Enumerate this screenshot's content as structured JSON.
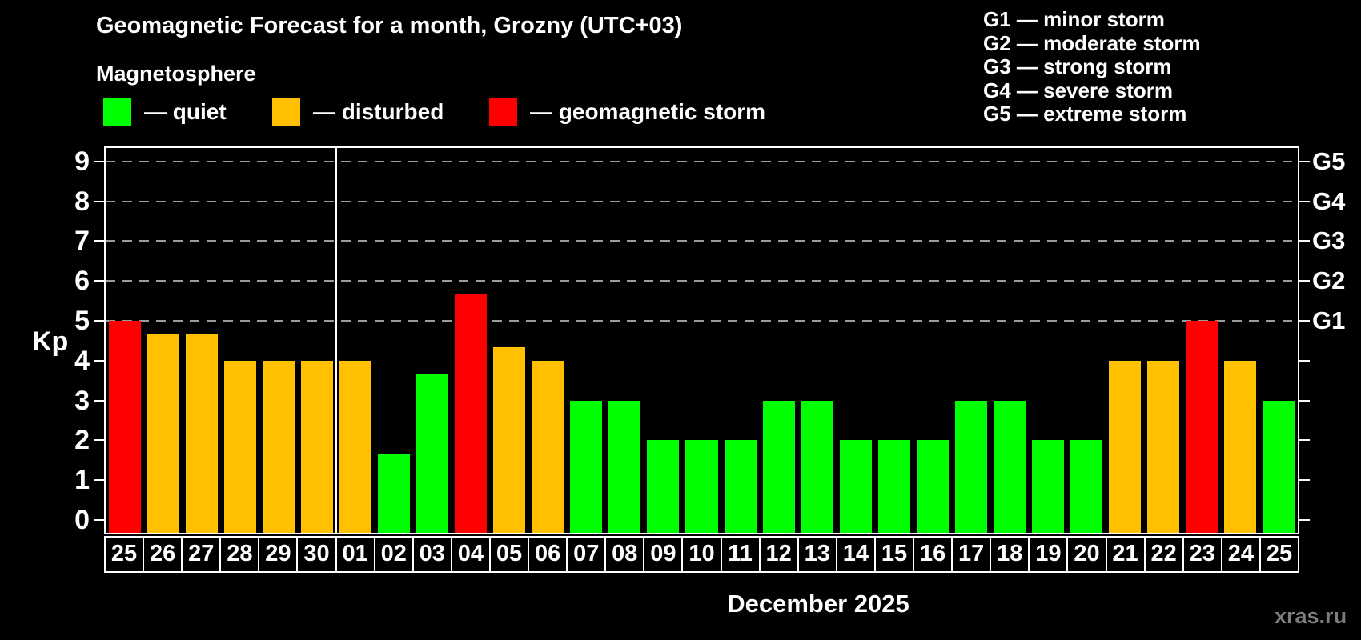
{
  "header": {
    "title": "Geomagnetic Forecast for a month, Grozny (UTC+03)",
    "subtitle": "Magnetosphere"
  },
  "legend": {
    "items": [
      {
        "name": "quiet",
        "label": "— quiet",
        "color": "#00ff00"
      },
      {
        "name": "disturbed",
        "label": "— disturbed",
        "color": "#ffc000"
      },
      {
        "name": "storm",
        "label": "— geomagnetic storm",
        "color": "#ff0000"
      }
    ]
  },
  "g_legend": {
    "lines": [
      "G1 — minor storm",
      "G2 — moderate storm",
      "G3 — strong storm",
      "G4 — severe storm",
      "G5 — extreme storm"
    ]
  },
  "chart_data": {
    "type": "bar",
    "title": "Geomagnetic Forecast for a month, Grozny (UTC+03)",
    "subtitle": "Magnetosphere",
    "xlabel": "December 2025",
    "ylabel": "Kp",
    "ylim": [
      0,
      9
    ],
    "yticks": [
      0,
      1,
      2,
      3,
      4,
      5,
      6,
      7,
      8,
      9
    ],
    "gridlines_kp": [
      5,
      6,
      7,
      8,
      9
    ],
    "right_axis": {
      "labels": [
        "G1",
        "G2",
        "G3",
        "G4",
        "G5"
      ],
      "kp_positions": [
        5,
        6,
        7,
        8,
        9
      ]
    },
    "month_separator_after_index": 5,
    "categories": [
      "25",
      "26",
      "27",
      "28",
      "29",
      "30",
      "01",
      "02",
      "03",
      "04",
      "05",
      "06",
      "07",
      "08",
      "09",
      "10",
      "11",
      "12",
      "13",
      "14",
      "15",
      "16",
      "17",
      "18",
      "19",
      "20",
      "21",
      "22",
      "23",
      "24",
      "25"
    ],
    "values": [
      5.0,
      4.67,
      4.67,
      4.0,
      4.0,
      4.0,
      4.0,
      1.67,
      3.67,
      5.67,
      4.33,
      4.0,
      3.0,
      3.0,
      2.0,
      2.0,
      2.0,
      3.0,
      3.0,
      2.0,
      2.0,
      2.0,
      3.0,
      3.0,
      2.0,
      2.0,
      4.0,
      4.0,
      5.0,
      4.0,
      3.0
    ],
    "statuses": [
      "storm",
      "disturbed",
      "disturbed",
      "disturbed",
      "disturbed",
      "disturbed",
      "disturbed",
      "quiet",
      "quiet",
      "storm",
      "disturbed",
      "disturbed",
      "quiet",
      "quiet",
      "quiet",
      "quiet",
      "quiet",
      "quiet",
      "quiet",
      "quiet",
      "quiet",
      "quiet",
      "quiet",
      "quiet",
      "quiet",
      "quiet",
      "disturbed",
      "disturbed",
      "storm",
      "disturbed",
      "quiet"
    ],
    "colors": {
      "quiet": "#00ff00",
      "disturbed": "#ffc000",
      "storm": "#ff0000"
    },
    "legend_position": "top-left",
    "grid": "dashed horizontal at Kp 5-9"
  },
  "footer": {
    "watermark": "xras.ru"
  }
}
